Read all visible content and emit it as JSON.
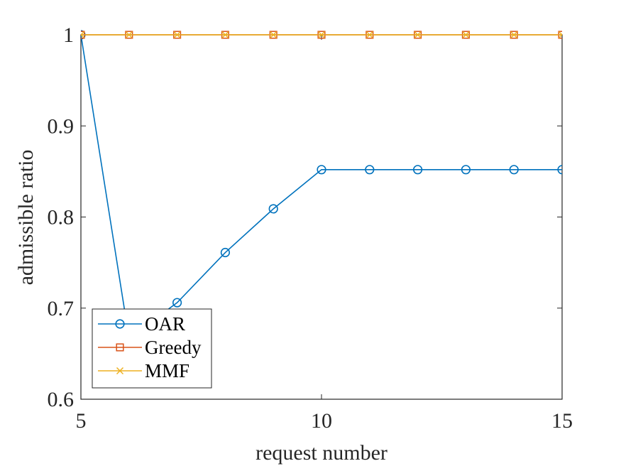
{
  "chart_data": {
    "type": "line",
    "xlabel": "request number",
    "ylabel": "admissible ratio",
    "xlim": [
      5,
      15
    ],
    "ylim": [
      0.6,
      1.0
    ],
    "xticks": [
      "5",
      "10",
      "15"
    ],
    "yticks": [
      "0.6",
      "0.7",
      "0.8",
      "0.9",
      "1"
    ],
    "grid": false,
    "legend_position": "bottom-left",
    "x": [
      5,
      6,
      7,
      8,
      9,
      10,
      11,
      12,
      13,
      14,
      15
    ],
    "series": [
      {
        "name": "OAR",
        "color": "#0072BD",
        "marker": "circle",
        "values": [
          1.0,
          0.667,
          0.706,
          0.761,
          0.809,
          0.852,
          0.852,
          0.852,
          0.852,
          0.852,
          0.852
        ]
      },
      {
        "name": "Greedy",
        "color": "#D95319",
        "marker": "square",
        "values": [
          1,
          1,
          1,
          1,
          1,
          1,
          1,
          1,
          1,
          1,
          1
        ]
      },
      {
        "name": "MMF",
        "color": "#EDB120",
        "marker": "x",
        "values": [
          1,
          1,
          1,
          1,
          1,
          1,
          1,
          1,
          1,
          1,
          1
        ]
      }
    ]
  }
}
